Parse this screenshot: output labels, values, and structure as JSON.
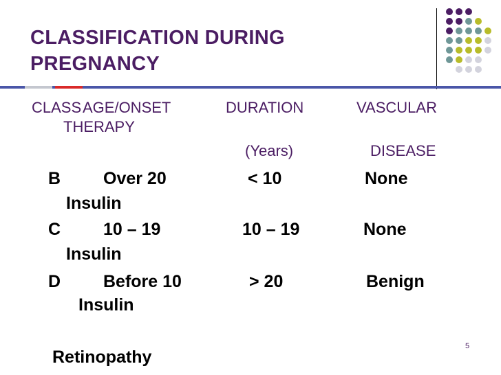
{
  "slide": {
    "title": "CLASSIFICATION DURING PREGNANCY",
    "page_number": "5",
    "colors": {
      "title": "#4b1d63",
      "rule": "#4a56a8",
      "rule_accent": "#d92a2a",
      "dot_purple": "#4b1d63",
      "dot_teal": "#6f9797",
      "dot_olive": "#b8bc2a",
      "dot_grey": "#d3d3dd"
    }
  },
  "header": {
    "class": "CLASS",
    "age_onset": "AGE/ONSET",
    "therapy": "THERAPY",
    "duration": "DURATION",
    "duration_unit": "(Years)",
    "vascular": "VASCULAR",
    "disease": "DISEASE"
  },
  "rows": [
    {
      "class": "B",
      "age": "Over 20",
      "duration": "< 10",
      "vascular": "None",
      "therapy": "Insulin"
    },
    {
      "class": "C",
      "age": "10 – 19",
      "duration": "10 – 19",
      "vascular": "None",
      "therapy": "Insulin"
    },
    {
      "class": "D",
      "age": "Before 10",
      "duration": "> 20",
      "vascular": "Benign",
      "therapy": "Insulin"
    }
  ],
  "trailing": "Retinopathy"
}
